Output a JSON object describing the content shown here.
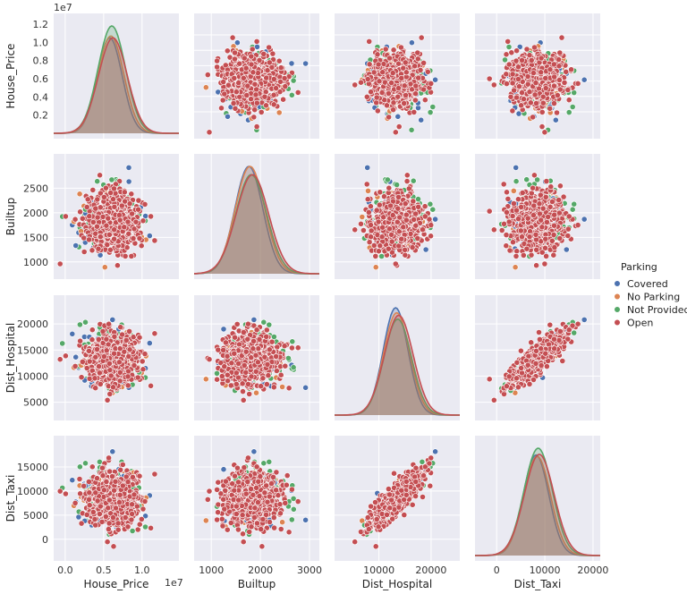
{
  "chart_data": {
    "type": "pairplot",
    "variables": [
      "House_Price",
      "Builtup",
      "Dist_Hospital",
      "Dist_Taxi"
    ],
    "hue": "Parking",
    "legend": {
      "title": "Parking",
      "placement": "right",
      "entries": [
        {
          "name": "Covered",
          "color": "#4c72b0"
        },
        {
          "name": "No Parking",
          "color": "#dd8452"
        },
        {
          "name": "Not Provided",
          "color": "#55a868"
        },
        {
          "name": "Open",
          "color": "#c44e52"
        }
      ]
    },
    "axes": {
      "House_Price": {
        "label": "House_Price",
        "lim": [
          -0.15,
          1.48
        ],
        "multiplier_label": "1e7",
        "ticks_x": [
          0.0,
          0.5,
          1.0
        ],
        "tick_labels_x": [
          "0.0",
          "0.5",
          "1.0"
        ],
        "ticks_y": [
          0.2,
          0.4,
          0.6,
          0.8,
          1.0,
          1.2
        ],
        "tick_labels_y": [
          "0.2",
          "0.4",
          "0.6",
          "0.8",
          "1.0",
          "1.2"
        ]
      },
      "Builtup": {
        "label": "Builtup",
        "lim": [
          650,
          3200
        ],
        "ticks_x": [
          1000,
          2000,
          3000
        ],
        "tick_labels_x": [
          "1000",
          "2000",
          "3000"
        ],
        "ticks_y": [
          1000,
          1500,
          2000,
          2500
        ],
        "tick_labels_y": [
          "1000",
          "1500",
          "2000",
          "2500"
        ]
      },
      "Dist_Hospital": {
        "label": "Dist_Hospital",
        "lim": [
          1500,
          25500
        ],
        "ticks_x": [
          10000,
          20000
        ],
        "tick_labels_x": [
          "10000",
          "20000"
        ],
        "ticks_y": [
          5000,
          10000,
          15000,
          20000
        ],
        "tick_labels_y": [
          "5000",
          "10000",
          "15000",
          "20000"
        ]
      },
      "Dist_Taxi": {
        "label": "Dist_Taxi",
        "lim": [
          -4500,
          21500
        ],
        "ticks_x": [
          0,
          10000,
          20000
        ],
        "tick_labels_x": [
          "0",
          "10000",
          "20000"
        ],
        "ticks_y": [
          0,
          5000,
          10000,
          15000
        ],
        "tick_labels_y": [
          "0",
          "5000",
          "10000",
          "15000"
        ]
      }
    },
    "distributions": {
      "House_Price": {
        "mean": 0.6,
        "sd": 0.17
      },
      "Builtup": {
        "mean": 1800,
        "sd": 300
      },
      "Dist_Hospital": {
        "mean": 13500,
        "sd": 2500
      },
      "Dist_Taxi": {
        "mean": 8500,
        "sd": 2800
      }
    },
    "correlations": {
      "Dist_Hospital|Dist_Taxi": 0.85
    },
    "diagonal_peak_density": {
      "House_Price": {
        "Covered": 1.05,
        "No Parking": 1.07,
        "Not Provided": 1.18,
        "Open": 1.05
      },
      "Builtup": {
        "Covered": 0.0013,
        "No Parking": 0.0013,
        "Not Provided": 0.0012,
        "Open": 0.0012
      },
      "Dist_Hospital": {
        "Covered": 0.00017,
        "No Parking": 0.000162,
        "Not Provided": 0.000152,
        "Open": 0.000158
      },
      "Dist_Taxi": {
        "Covered": 0.000148,
        "No Parking": 0.000146,
        "Not Provided": 0.000158,
        "Open": 0.000149
      }
    },
    "background_color": "#eaeaf2",
    "grid": true,
    "n_points_per_panel_approx": 1000
  }
}
